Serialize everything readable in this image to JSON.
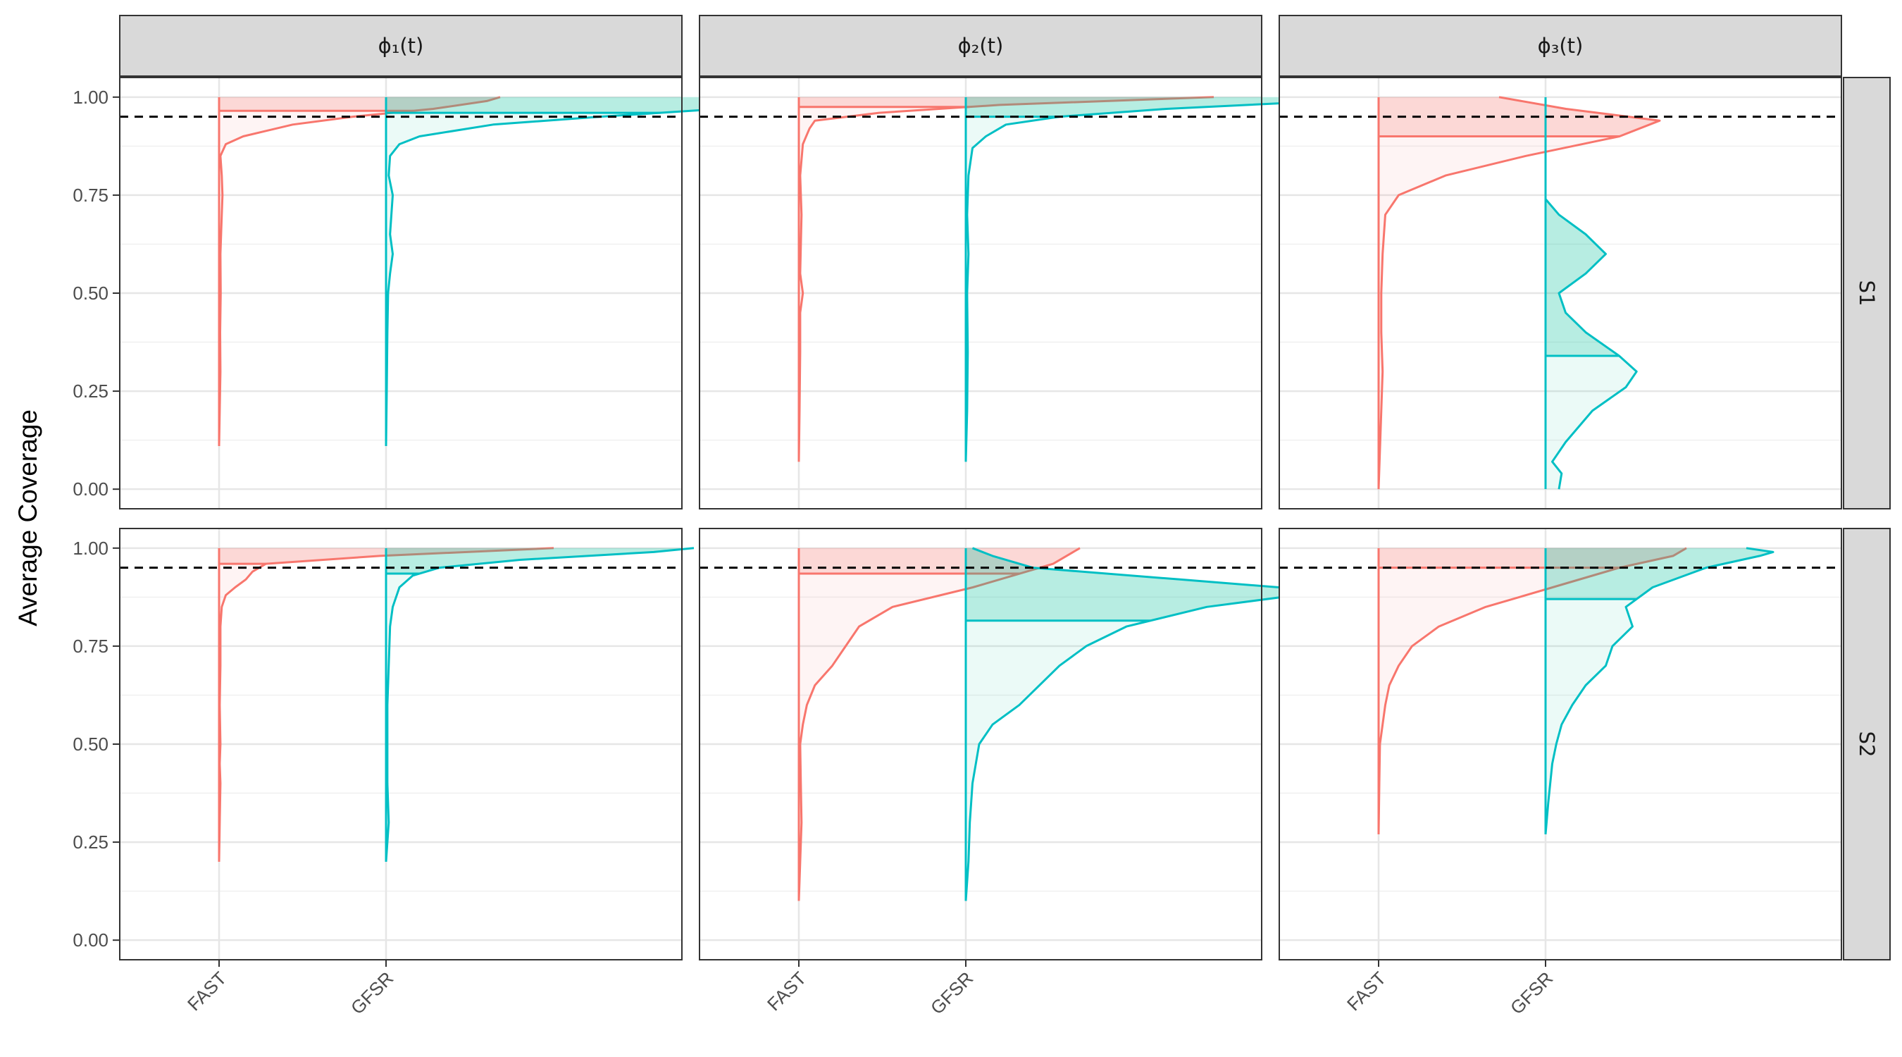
{
  "chart_data": {
    "type": "violin",
    "ylabel": "Average Coverage",
    "ylim": [
      -0.05,
      1.05
    ],
    "yticks": [
      0.0,
      0.25,
      0.5,
      0.75,
      1.0
    ],
    "ytick_labels": [
      "0.00",
      "0.25",
      "0.50",
      "0.75",
      "1.00"
    ],
    "categories": [
      "FAST",
      "GFSR"
    ],
    "reference_line": 0.95,
    "grid": true,
    "colors": {
      "FAST": "#F8766D",
      "GFSR": "#00BFC4",
      "fill_FAST": "#F8766D",
      "fill_GFSR": "#00C19A"
    },
    "columns": [
      "ϕ₁(t)",
      "ϕ₂(t)",
      "ϕ₃(t)"
    ],
    "rows": [
      "S1",
      "S2"
    ],
    "panels": [
      {
        "row": "S1",
        "column": "ϕ₁(t)",
        "FAST": {
          "median": 0.965,
          "ymin": 0.11,
          "ymax": 1.0,
          "profile": [
            [
              0.11,
              0.0
            ],
            [
              0.2,
              0.005
            ],
            [
              0.3,
              0.01
            ],
            [
              0.4,
              0.008
            ],
            [
              0.5,
              0.012
            ],
            [
              0.6,
              0.01
            ],
            [
              0.7,
              0.02
            ],
            [
              0.75,
              0.025
            ],
            [
              0.8,
              0.02
            ],
            [
              0.85,
              0.01
            ],
            [
              0.88,
              0.05
            ],
            [
              0.9,
              0.18
            ],
            [
              0.93,
              0.55
            ],
            [
              0.95,
              1.0
            ],
            [
              0.97,
              1.6
            ],
            [
              0.99,
              2.0
            ],
            [
              1.0,
              2.1
            ]
          ]
        },
        "GFSR": {
          "median": 0.96,
          "ymin": 0.11,
          "ymax": 1.0,
          "profile": [
            [
              0.11,
              0.0
            ],
            [
              0.25,
              0.005
            ],
            [
              0.4,
              0.01
            ],
            [
              0.5,
              0.015
            ],
            [
              0.55,
              0.03
            ],
            [
              0.6,
              0.05
            ],
            [
              0.65,
              0.03
            ],
            [
              0.7,
              0.04
            ],
            [
              0.75,
              0.05
            ],
            [
              0.8,
              0.02
            ],
            [
              0.85,
              0.03
            ],
            [
              0.88,
              0.1
            ],
            [
              0.9,
              0.25
            ],
            [
              0.93,
              0.8
            ],
            [
              0.95,
              1.6
            ],
            [
              0.97,
              2.5
            ],
            [
              0.99,
              3.0
            ],
            [
              1.0,
              3.1
            ]
          ]
        }
      },
      {
        "row": "S1",
        "column": "ϕ₂(t)",
        "FAST": {
          "median": 0.975,
          "ymin": 0.07,
          "ymax": 1.0,
          "profile": [
            [
              0.07,
              0.0
            ],
            [
              0.2,
              0.005
            ],
            [
              0.35,
              0.01
            ],
            [
              0.45,
              0.01
            ],
            [
              0.5,
              0.03
            ],
            [
              0.55,
              0.01
            ],
            [
              0.7,
              0.02
            ],
            [
              0.8,
              0.01
            ],
            [
              0.88,
              0.03
            ],
            [
              0.92,
              0.08
            ],
            [
              0.94,
              0.12
            ],
            [
              0.96,
              0.6
            ],
            [
              0.98,
              1.5
            ],
            [
              1.0,
              3.1
            ]
          ]
        },
        "GFSR": {
          "median": 0.95,
          "ymin": 0.07,
          "ymax": 1.0,
          "profile": [
            [
              0.07,
              0.0
            ],
            [
              0.2,
              0.01
            ],
            [
              0.35,
              0.015
            ],
            [
              0.5,
              0.01
            ],
            [
              0.6,
              0.02
            ],
            [
              0.7,
              0.01
            ],
            [
              0.8,
              0.02
            ],
            [
              0.87,
              0.05
            ],
            [
              0.9,
              0.15
            ],
            [
              0.93,
              0.3
            ],
            [
              0.95,
              0.7
            ],
            [
              0.97,
              1.5
            ],
            [
              0.99,
              2.7
            ],
            [
              1.0,
              2.9
            ]
          ]
        }
      },
      {
        "row": "S1",
        "column": "ϕ₃(t)",
        "FAST": {
          "median": 0.9,
          "ymin": 0.0,
          "ymax": 1.0,
          "profile": [
            [
              0.0,
              0.0
            ],
            [
              0.1,
              0.01
            ],
            [
              0.2,
              0.02
            ],
            [
              0.3,
              0.03
            ],
            [
              0.4,
              0.02
            ],
            [
              0.5,
              0.02
            ],
            [
              0.6,
              0.03
            ],
            [
              0.7,
              0.05
            ],
            [
              0.75,
              0.15
            ],
            [
              0.8,
              0.5
            ],
            [
              0.85,
              1.1
            ],
            [
              0.9,
              1.8
            ],
            [
              0.94,
              2.1
            ],
            [
              0.97,
              1.4
            ],
            [
              1.0,
              0.9
            ]
          ]
        },
        "GFSR": {
          "median": 0.34,
          "ymin": 0.0,
          "ymax": 1.0,
          "profile": [
            [
              0.0,
              0.1
            ],
            [
              0.04,
              0.12
            ],
            [
              0.07,
              0.05
            ],
            [
              0.12,
              0.15
            ],
            [
              0.2,
              0.35
            ],
            [
              0.26,
              0.6
            ],
            [
              0.3,
              0.68
            ],
            [
              0.34,
              0.55
            ],
            [
              0.4,
              0.3
            ],
            [
              0.45,
              0.15
            ],
            [
              0.5,
              0.1
            ],
            [
              0.55,
              0.3
            ],
            [
              0.6,
              0.45
            ],
            [
              0.65,
              0.3
            ],
            [
              0.7,
              0.1
            ],
            [
              0.74,
              0.0
            ]
          ]
        }
      },
      {
        "row": "S2",
        "column": "ϕ₁(t)",
        "FAST": {
          "median": 0.96,
          "ymin": 0.2,
          "ymax": 1.0,
          "profile": [
            [
              0.2,
              0.0
            ],
            [
              0.3,
              0.005
            ],
            [
              0.4,
              0.01
            ],
            [
              0.45,
              0.005
            ],
            [
              0.5,
              0.01
            ],
            [
              0.6,
              0.005
            ],
            [
              0.7,
              0.01
            ],
            [
              0.8,
              0.01
            ],
            [
              0.85,
              0.02
            ],
            [
              0.88,
              0.05
            ],
            [
              0.9,
              0.12
            ],
            [
              0.92,
              0.2
            ],
            [
              0.94,
              0.25
            ],
            [
              0.96,
              0.35
            ],
            [
              0.98,
              1.2
            ],
            [
              1.0,
              2.5
            ]
          ]
        },
        "GFSR": {
          "median": 0.935,
          "ymin": 0.2,
          "ymax": 1.0,
          "profile": [
            [
              0.2,
              0.0
            ],
            [
              0.3,
              0.02
            ],
            [
              0.4,
              0.01
            ],
            [
              0.5,
              0.01
            ],
            [
              0.6,
              0.01
            ],
            [
              0.7,
              0.02
            ],
            [
              0.8,
              0.03
            ],
            [
              0.85,
              0.05
            ],
            [
              0.9,
              0.1
            ],
            [
              0.93,
              0.2
            ],
            [
              0.95,
              0.4
            ],
            [
              0.97,
              1.0
            ],
            [
              0.99,
              2.0
            ],
            [
              1.0,
              2.3
            ]
          ]
        }
      },
      {
        "row": "S2",
        "column": "ϕ₂(t)",
        "FAST": {
          "median": 0.935,
          "ymin": 0.1,
          "ymax": 1.0,
          "profile": [
            [
              0.1,
              0.0
            ],
            [
              0.2,
              0.01
            ],
            [
              0.3,
              0.02
            ],
            [
              0.4,
              0.015
            ],
            [
              0.5,
              0.01
            ],
            [
              0.55,
              0.03
            ],
            [
              0.6,
              0.06
            ],
            [
              0.65,
              0.12
            ],
            [
              0.7,
              0.25
            ],
            [
              0.75,
              0.35
            ],
            [
              0.8,
              0.45
            ],
            [
              0.85,
              0.7
            ],
            [
              0.9,
              1.3
            ],
            [
              0.93,
              1.6
            ],
            [
              0.96,
              1.9
            ],
            [
              0.98,
              2.0
            ],
            [
              1.0,
              2.1
            ]
          ]
        },
        "GFSR": {
          "median": 0.815,
          "ymin": 0.1,
          "ymax": 1.0,
          "profile": [
            [
              0.1,
              0.0
            ],
            [
              0.2,
              0.02
            ],
            [
              0.3,
              0.03
            ],
            [
              0.4,
              0.05
            ],
            [
              0.5,
              0.1
            ],
            [
              0.55,
              0.2
            ],
            [
              0.6,
              0.4
            ],
            [
              0.7,
              0.7
            ],
            [
              0.75,
              0.9
            ],
            [
              0.8,
              1.2
            ],
            [
              0.85,
              1.8
            ],
            [
              0.89,
              2.7
            ],
            [
              0.92,
              1.6
            ],
            [
              0.95,
              0.5
            ],
            [
              0.98,
              0.2
            ],
            [
              1.0,
              0.05
            ]
          ]
        }
      },
      {
        "row": "S2",
        "column": "ϕ₃(t)",
        "FAST": {
          "median": 0.95,
          "ymin": 0.27,
          "ymax": 1.0,
          "profile": [
            [
              0.27,
              0.0
            ],
            [
              0.4,
              0.005
            ],
            [
              0.5,
              0.01
            ],
            [
              0.55,
              0.03
            ],
            [
              0.6,
              0.05
            ],
            [
              0.65,
              0.08
            ],
            [
              0.7,
              0.15
            ],
            [
              0.75,
              0.25
            ],
            [
              0.8,
              0.45
            ],
            [
              0.85,
              0.8
            ],
            [
              0.9,
              1.3
            ],
            [
              0.95,
              1.8
            ],
            [
              0.98,
              2.2
            ],
            [
              1.0,
              2.3
            ]
          ]
        },
        "GFSR": {
          "median": 0.87,
          "ymin": 0.27,
          "ymax": 1.0,
          "profile": [
            [
              0.27,
              0.0
            ],
            [
              0.35,
              0.02
            ],
            [
              0.45,
              0.05
            ],
            [
              0.5,
              0.08
            ],
            [
              0.55,
              0.12
            ],
            [
              0.6,
              0.2
            ],
            [
              0.65,
              0.3
            ],
            [
              0.7,
              0.45
            ],
            [
              0.75,
              0.5
            ],
            [
              0.8,
              0.65
            ],
            [
              0.85,
              0.6
            ],
            [
              0.9,
              0.8
            ],
            [
              0.95,
              1.2
            ],
            [
              0.98,
              1.6
            ],
            [
              0.99,
              1.7
            ],
            [
              1.0,
              1.5
            ]
          ]
        }
      }
    ]
  }
}
